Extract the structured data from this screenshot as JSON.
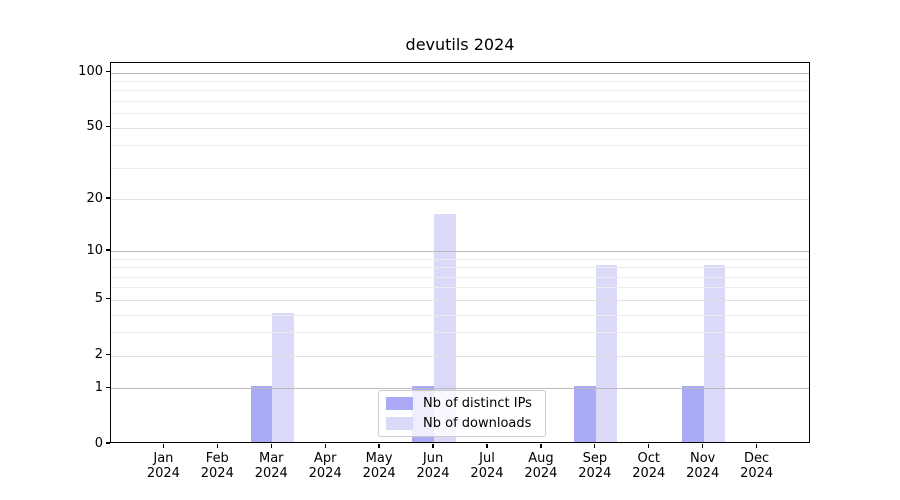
{
  "title": "devutils 2024",
  "chart_data": {
    "type": "bar",
    "categories": [
      "Jan",
      "Feb",
      "Mar",
      "Apr",
      "May",
      "Jun",
      "Jul",
      "Aug",
      "Sep",
      "Oct",
      "Nov",
      "Dec"
    ],
    "year_label": "2024",
    "series": [
      {
        "name": "Nb of distinct IPs",
        "color": "#a9a9f6",
        "values": [
          0,
          0,
          1,
          0,
          0,
          1,
          0,
          0,
          1,
          0,
          1,
          0
        ]
      },
      {
        "name": "Nb of downloads",
        "color": "#dadaf8",
        "values": [
          0,
          0,
          4,
          0,
          0,
          16,
          0,
          0,
          8,
          0,
          8,
          0
        ]
      }
    ],
    "yscale": "log1p",
    "ylim": [
      0,
      113
    ],
    "y_major_ticks": [
      0,
      1,
      2,
      5,
      10,
      20,
      50,
      100
    ],
    "y_minor_ticks": [
      3,
      4,
      6,
      7,
      8,
      9,
      30,
      40,
      60,
      70,
      80,
      90
    ],
    "grid": true,
    "legend_position": "lower center"
  }
}
